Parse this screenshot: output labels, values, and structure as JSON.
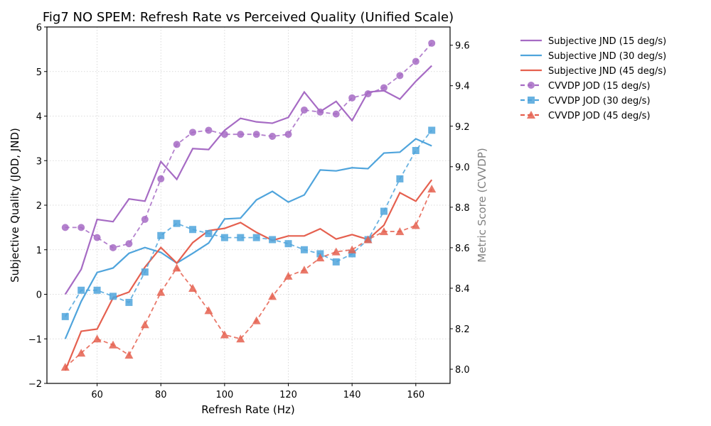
{
  "chart_data": {
    "type": "line",
    "title": "Fig7 NO SPEM: Refresh Rate vs Perceived Quality (Unified Scale)",
    "xlabel": "Refresh Rate (Hz)",
    "ylabel": "Subjective Quality (JOD, JND)",
    "y2label": "Metric Score (CVVDP)",
    "xlim": [
      44.25,
      170.75
    ],
    "ylim": [
      -2,
      6
    ],
    "y2lim": [
      7.93,
      9.69
    ],
    "xticks": [
      60,
      80,
      100,
      120,
      140,
      160
    ],
    "yticks": [
      -2,
      -1,
      0,
      1,
      2,
      3,
      4,
      5,
      6
    ],
    "ytick_labels": [
      "−2",
      "−1",
      "0",
      "1",
      "2",
      "3",
      "4",
      "5",
      "6"
    ],
    "y2ticks": [
      8.0,
      8.2,
      8.4,
      8.6,
      8.8,
      9.0,
      9.2,
      9.4,
      9.6
    ],
    "y2tick_labels": [
      "8.0",
      "8.2",
      "8.4",
      "8.6",
      "8.8",
      "9.0",
      "9.2",
      "9.4",
      "9.6"
    ],
    "grid": true,
    "legend_position": "outside-right-top",
    "x": [
      50,
      55,
      60,
      65,
      70,
      75,
      80,
      85,
      90,
      95,
      100,
      105,
      110,
      115,
      120,
      125,
      130,
      135,
      140,
      145,
      150,
      155,
      160,
      165
    ],
    "series": [
      {
        "name": "Subjective JND (15 deg/s)",
        "axis": "left",
        "style": "solid",
        "marker": "none",
        "color": "#a66bc4",
        "values": [
          0.0,
          0.56,
          1.68,
          1.63,
          2.14,
          2.09,
          2.98,
          2.58,
          3.27,
          3.25,
          3.68,
          3.95,
          3.87,
          3.84,
          3.97,
          4.54,
          4.1,
          4.33,
          3.9,
          4.54,
          4.57,
          4.38,
          4.78,
          5.13
        ]
      },
      {
        "name": "Subjective JND (30 deg/s)",
        "axis": "left",
        "style": "solid",
        "marker": "none",
        "color": "#4fa4dc",
        "values": [
          -1.0,
          -0.16,
          0.49,
          0.59,
          0.92,
          1.05,
          0.94,
          0.7,
          0.92,
          1.15,
          1.69,
          1.71,
          2.12,
          2.31,
          2.07,
          2.23,
          2.79,
          2.77,
          2.84,
          2.82,
          3.17,
          3.19,
          3.49,
          3.33
        ]
      },
      {
        "name": "Subjective JND (45 deg/s)",
        "axis": "left",
        "style": "solid",
        "marker": "none",
        "color": "#e5604f",
        "values": [
          -1.71,
          -0.83,
          -0.78,
          -0.08,
          0.05,
          0.61,
          1.05,
          0.7,
          1.16,
          1.43,
          1.48,
          1.61,
          1.39,
          1.21,
          1.31,
          1.31,
          1.47,
          1.24,
          1.34,
          1.23,
          1.55,
          2.28,
          2.09,
          2.57
        ]
      },
      {
        "name": "CVVDP JOD (15 deg/s)",
        "axis": "right",
        "style": "dashed",
        "marker": "circle",
        "color": "#a66bc4",
        "values": [
          8.7,
          8.7,
          8.65,
          8.6,
          8.62,
          8.74,
          8.94,
          9.11,
          9.17,
          9.18,
          9.16,
          9.16,
          9.16,
          9.15,
          9.16,
          9.28,
          9.27,
          9.26,
          9.34,
          9.36,
          9.39,
          9.45,
          9.52,
          9.61
        ]
      },
      {
        "name": "CVVDP JOD (30 deg/s)",
        "axis": "right",
        "style": "dashed",
        "marker": "square",
        "color": "#4fa4dc",
        "values": [
          8.26,
          8.39,
          8.39,
          8.36,
          8.33,
          8.48,
          8.66,
          8.72,
          8.69,
          8.67,
          8.65,
          8.65,
          8.65,
          8.64,
          8.62,
          8.59,
          8.57,
          8.53,
          8.57,
          8.64,
          8.78,
          8.94,
          9.08,
          9.18
        ]
      },
      {
        "name": "CVVDP JOD (45 deg/s)",
        "axis": "right",
        "style": "dashed",
        "marker": "triangle",
        "color": "#e5604f",
        "values": [
          8.01,
          8.08,
          8.15,
          8.12,
          8.07,
          8.22,
          8.38,
          8.5,
          8.4,
          8.29,
          8.17,
          8.15,
          8.24,
          8.36,
          8.46,
          8.49,
          8.55,
          8.58,
          8.59,
          8.64,
          8.68,
          8.68,
          8.71,
          8.89
        ]
      }
    ]
  }
}
